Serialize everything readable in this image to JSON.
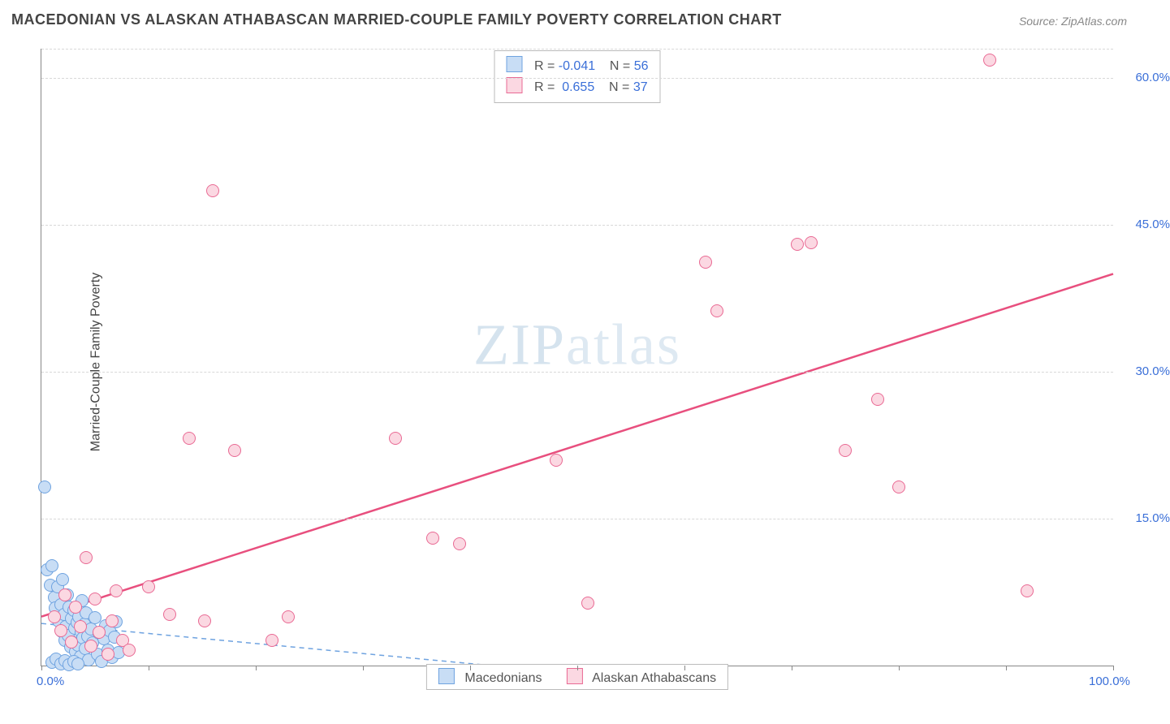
{
  "title": "MACEDONIAN VS ALASKAN ATHABASCAN MARRIED-COUPLE FAMILY POVERTY CORRELATION CHART",
  "source": "Source: ZipAtlas.com",
  "ylabel": "Married-Couple Family Poverty",
  "watermark_a": "ZIP",
  "watermark_b": "atlas",
  "stats": {
    "series1": {
      "r_label": "R =",
      "r": "-0.041",
      "n_label": "N =",
      "n": "56"
    },
    "series2": {
      "r_label": "R =",
      "r": "0.655",
      "n_label": "N =",
      "n": "37"
    }
  },
  "legend": {
    "s1": "Macedonians",
    "s2": "Alaskan Athabascans"
  },
  "chart": {
    "type": "scatter",
    "background_color": "#ffffff",
    "grid_color": "#d8d8d8",
    "axis_color": "#888888",
    "tick_label_color": "#3a6fd8",
    "xlim": [
      0,
      100
    ],
    "ylim": [
      0,
      63
    ],
    "xticks": [
      0,
      10,
      20,
      30,
      40,
      50,
      60,
      70,
      80,
      90,
      100
    ],
    "xtick_labels": {
      "0": "0.0%",
      "100": "100.0%"
    },
    "yticks": [
      15,
      30,
      45,
      60
    ],
    "ytick_labels": {
      "15": "15.0%",
      "30": "30.0%",
      "45": "45.0%",
      "60": "60.0%"
    },
    "marker_radius": 8,
    "marker_border_width": 1.5,
    "series": [
      {
        "key": "s1",
        "fill": "#c8ddf5",
        "stroke": "#6fa3e0",
        "trend": {
          "x1": 0,
          "y1": 4.3,
          "x2": 42,
          "y2": 0,
          "stroke": "#6fa3e0",
          "width": 1.5,
          "dash": "6,5"
        },
        "points": [
          [
            0.3,
            18.2
          ],
          [
            0.5,
            9.8
          ],
          [
            0.8,
            8.2
          ],
          [
            1.0,
            10.2
          ],
          [
            1.2,
            7.0
          ],
          [
            1.3,
            5.9
          ],
          [
            1.5,
            8.0
          ],
          [
            1.6,
            4.6
          ],
          [
            1.8,
            6.2
          ],
          [
            1.9,
            3.5
          ],
          [
            2.0,
            8.8
          ],
          [
            2.1,
            5.2
          ],
          [
            2.2,
            2.6
          ],
          [
            2.3,
            4.0
          ],
          [
            2.4,
            7.2
          ],
          [
            2.5,
            3.1
          ],
          [
            2.6,
            6.0
          ],
          [
            2.7,
            1.9
          ],
          [
            2.8,
            4.8
          ],
          [
            2.9,
            2.4
          ],
          [
            3.0,
            5.6
          ],
          [
            3.1,
            3.8
          ],
          [
            3.2,
            1.4
          ],
          [
            3.3,
            4.4
          ],
          [
            3.4,
            2.1
          ],
          [
            3.5,
            5.0
          ],
          [
            3.6,
            0.9
          ],
          [
            3.7,
            3.4
          ],
          [
            3.8,
            6.6
          ],
          [
            3.9,
            2.8
          ],
          [
            4.0,
            4.2
          ],
          [
            4.1,
            1.7
          ],
          [
            4.2,
            5.4
          ],
          [
            4.3,
            3.0
          ],
          [
            4.4,
            0.6
          ],
          [
            4.6,
            3.7
          ],
          [
            4.8,
            2.3
          ],
          [
            5.0,
            4.9
          ],
          [
            5.2,
            1.2
          ],
          [
            5.4,
            3.3
          ],
          [
            5.6,
            0.4
          ],
          [
            5.8,
            2.7
          ],
          [
            6.0,
            4.1
          ],
          [
            6.2,
            1.6
          ],
          [
            6.4,
            3.6
          ],
          [
            6.6,
            0.8
          ],
          [
            6.8,
            2.9
          ],
          [
            7.0,
            4.5
          ],
          [
            7.2,
            1.3
          ],
          [
            1.0,
            0.3
          ],
          [
            1.4,
            0.7
          ],
          [
            1.8,
            0.2
          ],
          [
            2.2,
            0.5
          ],
          [
            2.6,
            0.1
          ],
          [
            3.0,
            0.4
          ],
          [
            3.4,
            0.2
          ]
        ]
      },
      {
        "key": "s2",
        "fill": "#fbd8e2",
        "stroke": "#e96a94",
        "trend": {
          "x1": 0,
          "y1": 5.0,
          "x2": 100,
          "y2": 40.0,
          "stroke": "#e84f7e",
          "width": 2.5,
          "dash": null
        },
        "points": [
          [
            1.2,
            5.0
          ],
          [
            1.8,
            3.6
          ],
          [
            2.2,
            7.2
          ],
          [
            2.8,
            2.4
          ],
          [
            3.2,
            6.0
          ],
          [
            3.6,
            4.0
          ],
          [
            4.2,
            11.0
          ],
          [
            4.6,
            2.0
          ],
          [
            5.0,
            6.8
          ],
          [
            5.4,
            3.4
          ],
          [
            6.2,
            1.2
          ],
          [
            6.6,
            4.6
          ],
          [
            7.0,
            7.6
          ],
          [
            7.6,
            2.6
          ],
          [
            8.2,
            1.6
          ],
          [
            10.0,
            8.0
          ],
          [
            12.0,
            5.2
          ],
          [
            13.8,
            23.2
          ],
          [
            15.2,
            4.6
          ],
          [
            18.0,
            22.0
          ],
          [
            21.5,
            2.6
          ],
          [
            23.0,
            5.0
          ],
          [
            33.0,
            23.2
          ],
          [
            36.5,
            13.0
          ],
          [
            39.0,
            12.4
          ],
          [
            48.0,
            21.0
          ],
          [
            51.0,
            6.4
          ],
          [
            62.0,
            41.2
          ],
          [
            63.0,
            36.2
          ],
          [
            70.5,
            43.0
          ],
          [
            71.8,
            43.2
          ],
          [
            75.0,
            22.0
          ],
          [
            78.0,
            27.2
          ],
          [
            80.0,
            18.2
          ],
          [
            88.5,
            61.8
          ],
          [
            92.0,
            7.6
          ],
          [
            16.0,
            48.5
          ]
        ]
      }
    ]
  }
}
